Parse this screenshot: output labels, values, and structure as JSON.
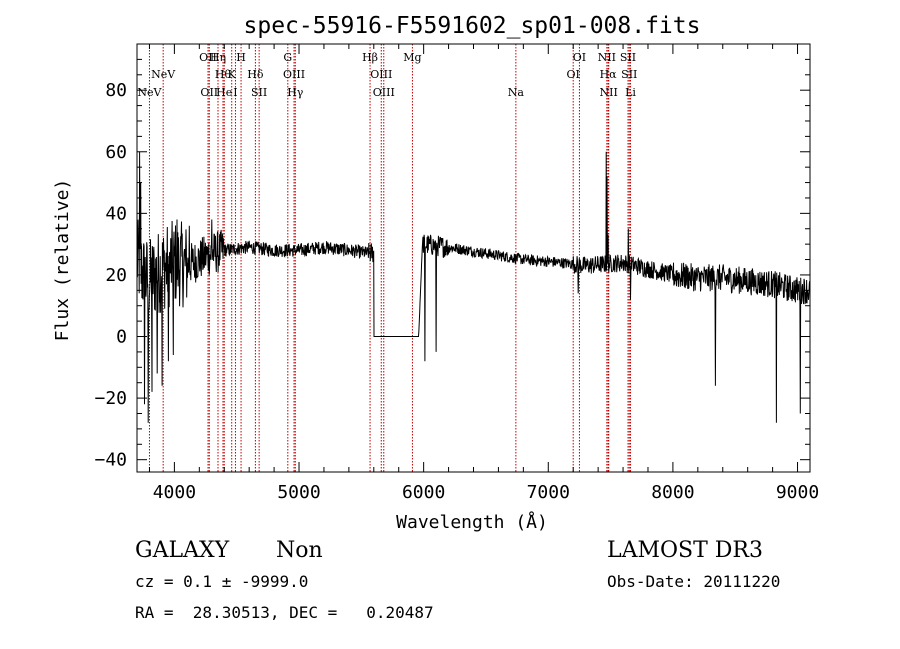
{
  "chart_data": {
    "type": "line",
    "title": "spec-55916-F5591602_sp01-008.fits",
    "xlabel": "Wavelength (Å)",
    "ylabel": "Flux (relative)",
    "xlim": [
      3700,
      9100
    ],
    "ylim": [
      -44,
      95
    ],
    "xticks": [
      4000,
      5000,
      6000,
      7000,
      8000,
      9000
    ],
    "yticks": [
      -40,
      -20,
      0,
      20,
      40,
      60,
      80
    ],
    "ytick_labels": [
      "−40",
      "−20",
      "0",
      "20",
      "40",
      "60",
      "80"
    ],
    "colors": {
      "spectrum": "#000000",
      "line_marker": "#c00000",
      "axis": "#000000"
    },
    "spectrum_anchors": [
      [
        3700,
        25
      ],
      [
        3750,
        20
      ],
      [
        3800,
        18
      ],
      [
        3900,
        22
      ],
      [
        4000,
        24
      ],
      [
        4100,
        23
      ],
      [
        4200,
        25
      ],
      [
        4300,
        27
      ],
      [
        4400,
        28
      ],
      [
        4600,
        29
      ],
      [
        4800,
        28
      ],
      [
        5000,
        28
      ],
      [
        5200,
        29
      ],
      [
        5400,
        28
      ],
      [
        5560,
        27
      ],
      [
        6000,
        30
      ],
      [
        6200,
        29
      ],
      [
        6500,
        27
      ],
      [
        6800,
        25
      ],
      [
        7100,
        24
      ],
      [
        7300,
        23
      ],
      [
        7600,
        24
      ],
      [
        7800,
        22
      ],
      [
        8000,
        20
      ],
      [
        8200,
        19
      ],
      [
        8400,
        19
      ],
      [
        8600,
        18
      ],
      [
        8800,
        17
      ],
      [
        9000,
        15
      ],
      [
        9100,
        15
      ]
    ],
    "gap": {
      "x_start": 5600,
      "x_end": 5960,
      "value": 0
    },
    "spikes": [
      {
        "x": 3720,
        "y": 60
      },
      {
        "x": 3728,
        "y": 50
      },
      {
        "x": 3760,
        "y": -22
      },
      {
        "x": 3790,
        "y": -28
      },
      {
        "x": 3820,
        "y": -18
      },
      {
        "x": 3860,
        "y": -12
      },
      {
        "x": 3900,
        "y": -16
      },
      {
        "x": 3950,
        "y": -8
      },
      {
        "x": 3990,
        "y": -6
      },
      {
        "x": 4020,
        "y": 38
      },
      {
        "x": 4120,
        "y": 36
      },
      {
        "x": 4300,
        "y": 38
      },
      {
        "x": 6010,
        "y": -8
      },
      {
        "x": 6100,
        "y": -5
      },
      {
        "x": 7240,
        "y": 14
      },
      {
        "x": 7463,
        "y": 60
      },
      {
        "x": 7470,
        "y": 52
      },
      {
        "x": 7480,
        "y": 33
      },
      {
        "x": 7640,
        "y": 35
      },
      {
        "x": 7660,
        "y": 12
      },
      {
        "x": 8340,
        "y": -16
      },
      {
        "x": 8830,
        "y": -28
      },
      {
        "x": 9020,
        "y": -25
      }
    ],
    "line_markers": [
      {
        "x": 3800,
        "label": "NeV",
        "row": 2
      },
      {
        "x": 3910,
        "label": "NeV",
        "row": 1
      },
      {
        "x": 4270,
        "label": "OII",
        "row": 0
      },
      {
        "x": 4280,
        "label": "OII",
        "row": 2
      },
      {
        "x": 4350,
        "label": "Hη",
        "row": 0
      },
      {
        "x": 4390,
        "label": "Hθ",
        "row": 1
      },
      {
        "x": 4400,
        "label": "He",
        "row": 2
      },
      {
        "x": 4460,
        "label": "K",
        "row": 1
      },
      {
        "x": 4490,
        "label": "I",
        "row": 2
      },
      {
        "x": 4535,
        "label": "H",
        "row": 0
      },
      {
        "x": 4650,
        "label": "Hδ",
        "row": 1
      },
      {
        "x": 4680,
        "label": "SII",
        "row": 2
      },
      {
        "x": 4910,
        "label": "G",
        "row": 0
      },
      {
        "x": 4960,
        "label": "OIII",
        "row": 1
      },
      {
        "x": 4970,
        "label": "Hγ",
        "row": 2
      },
      {
        "x": 5570,
        "label": "Hβ",
        "row": 0
      },
      {
        "x": 5660,
        "label": "OIII",
        "row": 1
      },
      {
        "x": 5680,
        "label": "OIII",
        "row": 2
      },
      {
        "x": 5910,
        "label": "Mg",
        "row": 0
      },
      {
        "x": 6740,
        "label": "Na",
        "row": 2
      },
      {
        "x": 7200,
        "label": "OI",
        "row": 1
      },
      {
        "x": 7250,
        "label": "OI",
        "row": 0
      },
      {
        "x": 7470,
        "label": "NII",
        "row": 0
      },
      {
        "x": 7480,
        "label": "Hα",
        "row": 1
      },
      {
        "x": 7485,
        "label": "NII",
        "row": 2
      },
      {
        "x": 7640,
        "label": "SII",
        "row": 0
      },
      {
        "x": 7650,
        "label": "SII",
        "row": 1
      },
      {
        "x": 7660,
        "label": "Li",
        "row": 2
      }
    ]
  },
  "info": {
    "object_class": "GALAXY",
    "object_subclass": "Non",
    "survey": "LAMOST DR3",
    "cz_line": "cz = 0.1 ± -9999.0",
    "obs_date": "Obs-Date: 20111220",
    "radec_line": "RA =  28.30513, DEC =   0.20487"
  }
}
